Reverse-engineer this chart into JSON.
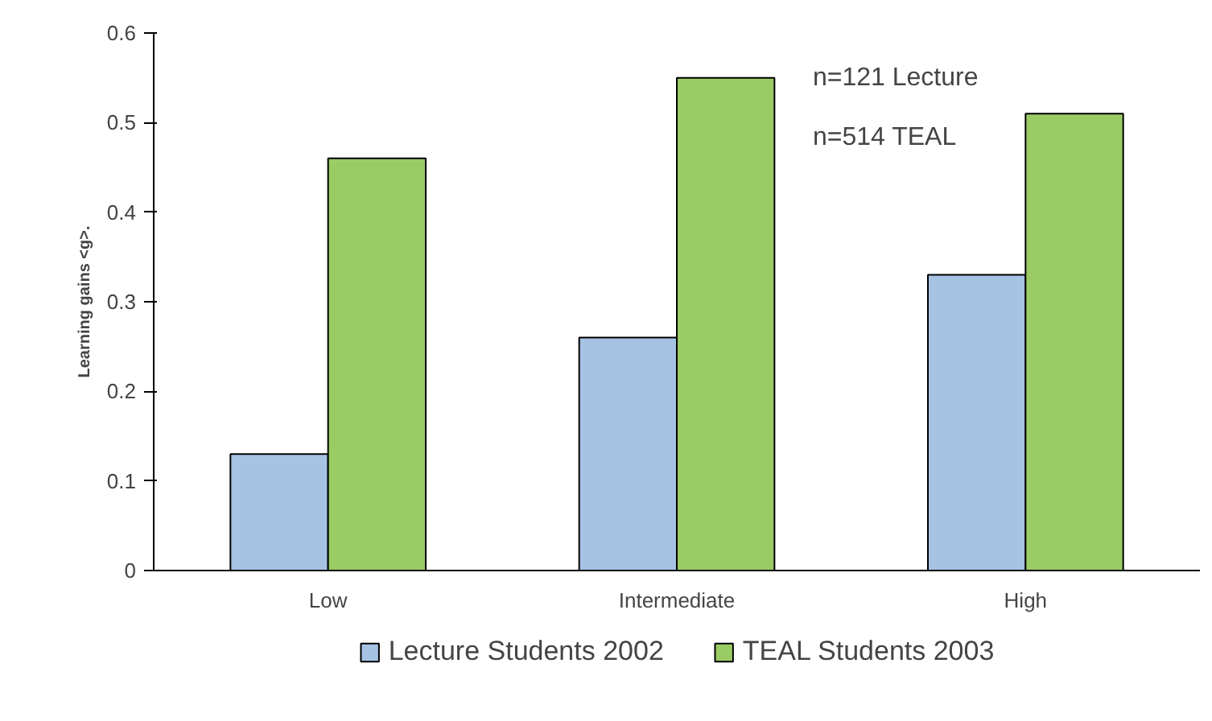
{
  "chart_data": {
    "type": "bar",
    "ylabel": "Learning gains <g>.",
    "categories": [
      "Low",
      "Intermediate",
      "High"
    ],
    "series": [
      {
        "name": "Lecture Students 2002",
        "color": "#a6c3e4",
        "values": [
          0.13,
          0.26,
          0.33
        ]
      },
      {
        "name": "TEAL Students 2003",
        "color": "#9acb64",
        "values": [
          0.46,
          0.55,
          0.51
        ]
      }
    ],
    "ylim": [
      0,
      0.6
    ],
    "yticks": [
      0,
      0.1,
      0.2,
      0.3,
      0.4,
      0.5,
      0.6
    ],
    "grid": false,
    "legend": "bottom",
    "annotations": [
      "n=121 Lecture",
      "n=514 TEAL"
    ]
  }
}
